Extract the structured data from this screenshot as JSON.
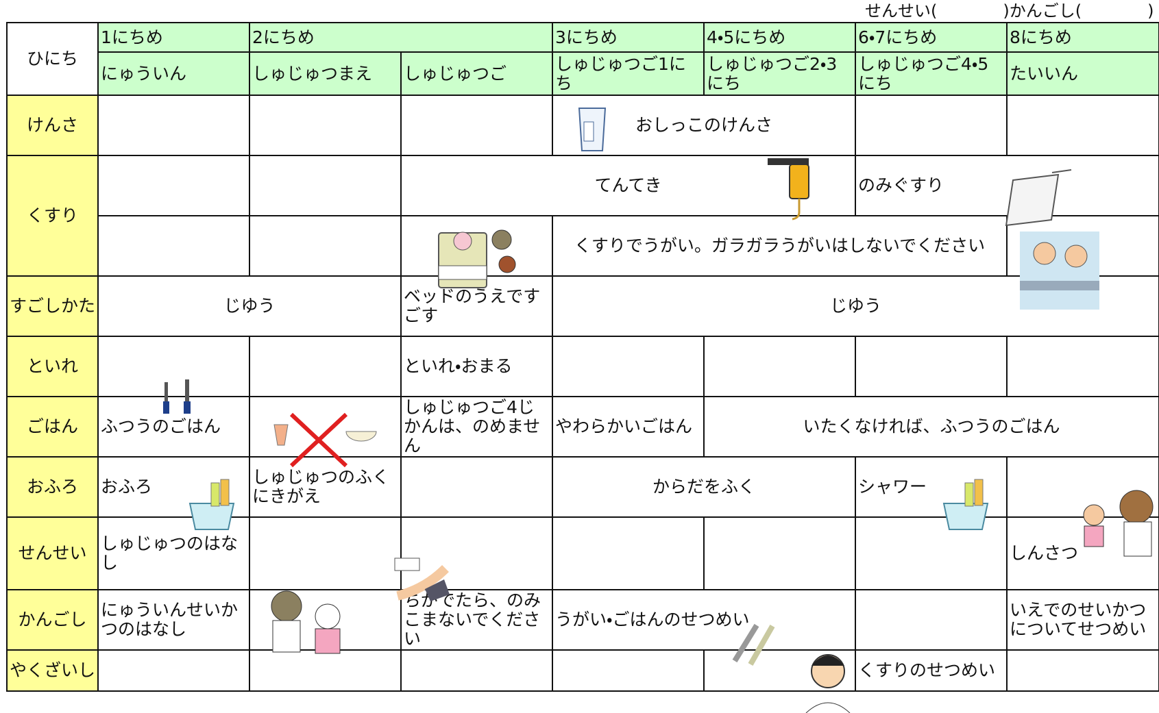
{
  "top_note": "せんせい(　　　　)かんごし(　　　　)",
  "table": {
    "corner": "ひにち",
    "days": [
      "1にちめ",
      "2にちめ",
      "3にちめ",
      "4・5にちめ",
      "6・7にちめ",
      "8にちめ"
    ],
    "phases": [
      "にゅういん",
      "しゅじゅつまえ",
      "しゅじゅつご",
      "しゅじゅつご1にち",
      "しゅじゅつご2・3にち",
      "しゅじゅつご4・5にち",
      "たいいん"
    ],
    "rows": [
      {
        "label": "けんさ",
        "cells": [
          "おしっこのけんさ"
        ]
      },
      {
        "label": "くすり",
        "cells": [
          "てんてき",
          "のみぐすり",
          "くすりでうがい。ガラガラうがいはしないでください"
        ]
      },
      {
        "label": "すごしかた",
        "cells": [
          "じゆう",
          "ベッドのうえですごす",
          "じゆう"
        ]
      },
      {
        "label": "といれ",
        "cells": [
          "といれ・おまる"
        ]
      },
      {
        "label": "ごはん",
        "cells": [
          "ふつうのごはん",
          "しゅじゅつご4じかんは、のめません",
          "やわらかいごはん",
          "いたくなければ、ふつうのごはん"
        ]
      },
      {
        "label": "おふろ",
        "cells": [
          "おふろ",
          "しゅじゅつのふくにきがえ",
          "からだをふく",
          "シャワー"
        ]
      },
      {
        "label": "せんせい",
        "cells": [
          "しゅじゅつのはなし",
          "しんさつ"
        ]
      },
      {
        "label": "かんごし",
        "cells": [
          "にゅういんせいかつのはなし",
          "ちがでたら、のみこまないでください",
          "うがい・ごはんのせつめい",
          "いえでのせいかつについてせつめい"
        ]
      },
      {
        "label": "やくざいし",
        "cells": [
          "くすりのせつめい"
        ]
      }
    ]
  }
}
